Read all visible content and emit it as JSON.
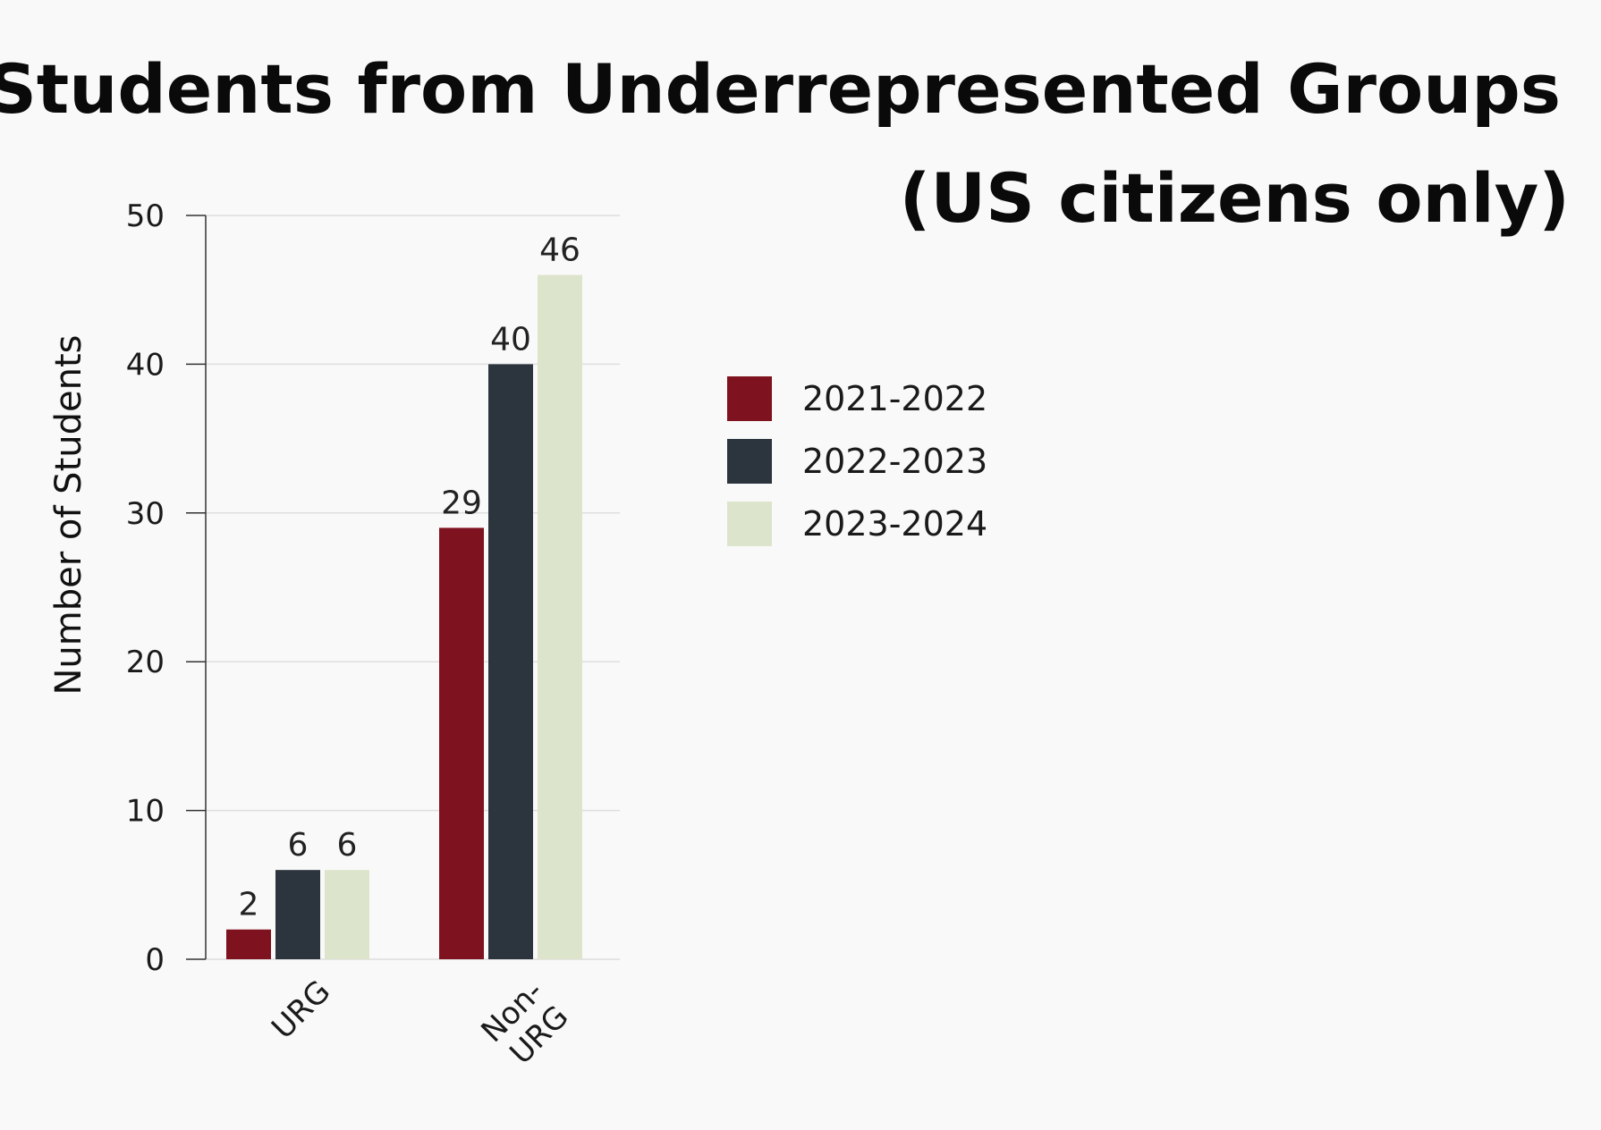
{
  "chart_data": {
    "type": "bar",
    "title": "Students from Underrepresented Groups (US citizens only)",
    "title_lines": [
      "Students from Underrepresented Groups",
      "(US citizens only)"
    ],
    "xlabel": "",
    "ylabel": "Number of Students",
    "ylim": [
      0,
      50
    ],
    "yticks": [
      0,
      10,
      20,
      30,
      40,
      50
    ],
    "categories": [
      "URG",
      "Non-URG"
    ],
    "category_label_lines": [
      [
        "URG"
      ],
      [
        "Non-",
        "URG"
      ]
    ],
    "series": [
      {
        "name": "2021-2022",
        "color": "#7e121e",
        "values": [
          2,
          29
        ]
      },
      {
        "name": "2022-2023",
        "color": "#2c343d",
        "values": [
          6,
          40
        ]
      },
      {
        "name": "2023-2024",
        "color": "#dde4cc",
        "values": [
          6,
          46
        ]
      }
    ],
    "grid": true,
    "legend_position": "right",
    "data_labels": true
  }
}
